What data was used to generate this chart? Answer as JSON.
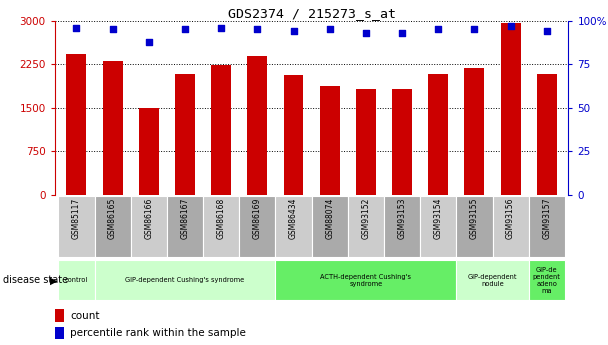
{
  "title": "GDS2374 / 215273_s_at",
  "samples": [
    "GSM85117",
    "GSM86165",
    "GSM86166",
    "GSM86167",
    "GSM86168",
    "GSM86169",
    "GSM86434",
    "GSM88074",
    "GSM93152",
    "GSM93153",
    "GSM93154",
    "GSM93155",
    "GSM93156",
    "GSM93157"
  ],
  "counts": [
    2430,
    2300,
    1490,
    2080,
    2230,
    2390,
    2060,
    1870,
    1830,
    1830,
    2080,
    2180,
    2960,
    2080
  ],
  "percentiles": [
    96,
    95,
    88,
    95,
    96,
    95,
    94,
    95,
    93,
    93,
    95,
    95,
    97,
    94
  ],
  "bar_color": "#cc0000",
  "dot_color": "#0000cc",
  "ylim_left": [
    0,
    3000
  ],
  "ylim_right": [
    0,
    100
  ],
  "yticks_left": [
    0,
    750,
    1500,
    2250,
    3000
  ],
  "yticks_right": [
    0,
    25,
    50,
    75,
    100
  ],
  "ytick_labels_right": [
    "0",
    "25",
    "50",
    "75",
    "100%"
  ],
  "disease_groups": [
    {
      "label": "control",
      "start": 0,
      "end": 1,
      "color": "#ccffcc"
    },
    {
      "label": "GIP-dependent Cushing's syndrome",
      "start": 1,
      "end": 6,
      "color": "#ccffcc"
    },
    {
      "label": "ACTH-dependent Cushing's\nsyndrome",
      "start": 6,
      "end": 11,
      "color": "#66ee66"
    },
    {
      "label": "GIP-dependent\nnodule",
      "start": 11,
      "end": 13,
      "color": "#ccffcc"
    },
    {
      "label": "GIP-de\npendent\nadeno\nma",
      "start": 13,
      "end": 14,
      "color": "#66ee66"
    }
  ],
  "disease_state_label": "disease state",
  "legend_count_label": "count",
  "legend_percentile_label": "percentile rank within the sample",
  "bar_color_red": "#cc0000",
  "dot_color_blue": "#0000cc",
  "tick_bg_light": "#cccccc",
  "tick_bg_dark": "#aaaaaa",
  "bg_white": "#ffffff"
}
